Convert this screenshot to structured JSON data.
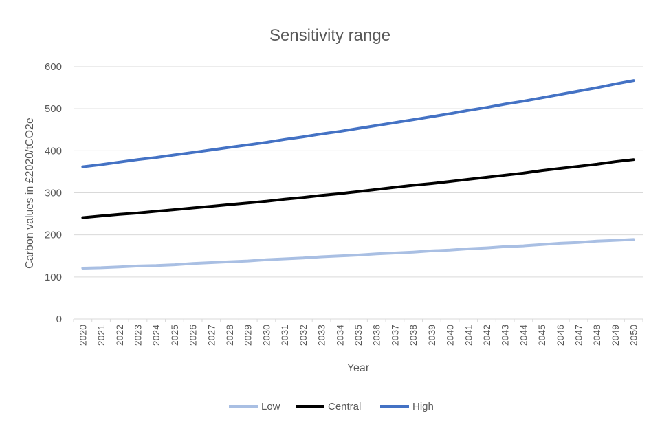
{
  "chart_data": {
    "type": "line",
    "title": "Sensitivity range",
    "xlabel": "Year",
    "ylabel": "Carbon values in £2020/tCO2e",
    "ylim": [
      0,
      600
    ],
    "yticks": [
      0,
      100,
      200,
      300,
      400,
      500,
      600
    ],
    "grid": true,
    "legend_position": "bottom",
    "x": [
      "2020",
      "2021",
      "2022",
      "2023",
      "2024",
      "2025",
      "2026",
      "2027",
      "2028",
      "2029",
      "2030",
      "2031",
      "2032",
      "2033",
      "2034",
      "2035",
      "2036",
      "2037",
      "2038",
      "2039",
      "2040",
      "2041",
      "2042",
      "2043",
      "2044",
      "2045",
      "2046",
      "2047",
      "2048",
      "2049",
      "2050"
    ],
    "series": [
      {
        "name": "Low",
        "color": "#a9bfe3",
        "values": [
          121,
          122,
          124,
          126,
          127,
          129,
          132,
          134,
          136,
          138,
          141,
          143,
          145,
          148,
          150,
          152,
          155,
          157,
          159,
          162,
          164,
          167,
          169,
          172,
          174,
          177,
          180,
          182,
          185,
          187,
          189
        ]
      },
      {
        "name": "Central",
        "color": "#000000",
        "values": [
          241,
          245,
          249,
          252,
          256,
          260,
          264,
          268,
          272,
          276,
          280,
          285,
          289,
          294,
          298,
          303,
          308,
          313,
          318,
          322,
          327,
          332,
          337,
          342,
          347,
          353,
          358,
          363,
          368,
          374,
          379
        ]
      },
      {
        "name": "High",
        "color": "#4472c4",
        "values": [
          362,
          367,
          373,
          379,
          384,
          390,
          396,
          402,
          408,
          414,
          420,
          427,
          433,
          440,
          446,
          453,
          460,
          467,
          474,
          481,
          488,
          496,
          503,
          511,
          518,
          526,
          534,
          542,
          550,
          559,
          567
        ]
      }
    ]
  }
}
